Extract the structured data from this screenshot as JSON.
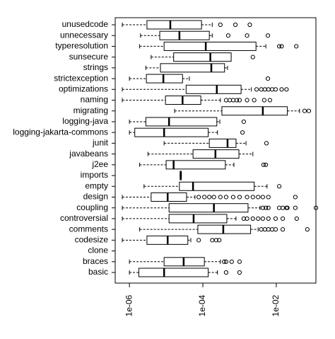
{
  "chart_data": {
    "type": "boxplot",
    "orientation": "horizontal",
    "log_x": true,
    "categories": [
      "unusedcode",
      "unnecessary",
      "typeresolution",
      "sunsecure",
      "strings",
      "strictexception",
      "optimizations",
      "naming",
      "migrating",
      "logging-java",
      "logging-jakarta-commons",
      "junit",
      "javabeans",
      "j2ee",
      "imports",
      "empty",
      "design",
      "coupling",
      "controversial",
      "comments",
      "codesize",
      "clone",
      "braces",
      "basic"
    ],
    "boxes": [
      {
        "whislo": 6.4e-07,
        "q1": 3e-06,
        "med": 1.3e-05,
        "q3": 9.2e-05,
        "whishi": 0.00018,
        "fliers": [
          0.0003,
          0.00077,
          0.0019
        ]
      },
      {
        "whislo": 2e-06,
        "q1": 6.7e-06,
        "med": 2.3e-05,
        "q3": 0.00015,
        "whishi": 0.00018,
        "fliers": [
          0.00049,
          0.0016,
          0.0059
        ]
      },
      {
        "whislo": 1.9e-06,
        "q1": 8.8e-06,
        "med": 0.00012,
        "q3": 0.0028,
        "whishi": 0.0052,
        "fliers": [
          0.012,
          0.014,
          0.035
        ]
      },
      {
        "whislo": 3.9e-06,
        "q1": 1.6e-05,
        "med": 0.00016,
        "q3": 0.00059,
        "whishi": 0.00059,
        "fliers": [
          0.0023
        ]
      },
      {
        "whislo": 2.8e-06,
        "q1": 7e-06,
        "med": 0.00017,
        "q3": 0.00039,
        "whishi": 0.00047,
        "fliers": []
      },
      {
        "whislo": 1e-06,
        "q1": 2.9e-06,
        "med": 8.4e-06,
        "q3": 2.8e-05,
        "whishi": 4.3e-05,
        "fliers": [
          0.0059
        ]
      },
      {
        "whislo": 6.4e-07,
        "q1": 3.5e-05,
        "med": 0.00024,
        "q3": 0.0011,
        "whishi": 0.0021,
        "fliers": [
          0.0029,
          0.0039,
          0.0049,
          0.0061,
          0.0077,
          0.0096,
          0.014,
          0.019
        ]
      },
      {
        "whislo": 6.4e-07,
        "q1": 9.6e-06,
        "med": 2.8e-05,
        "q3": 8.8e-05,
        "whishi": 0.0003,
        "fliers": [
          0.00043,
          0.00054,
          0.00067,
          0.00084,
          0.001,
          0.0016,
          0.0025,
          0.0047,
          0.0067
        ]
      },
      {
        "whislo": 1.7e-05,
        "q1": 0.00033,
        "med": 0.0043,
        "q3": 0.02,
        "whishi": 0.043,
        "fliers": [
          0.059,
          0.077
        ]
      },
      {
        "whislo": 1e-06,
        "q1": 2.8e-06,
        "med": 1.2e-05,
        "q3": 0.00024,
        "whishi": 0.00029,
        "fliers": [
          0.0013
        ]
      },
      {
        "whislo": 1e-06,
        "q1": 1.4e-06,
        "med": 8.8e-06,
        "q3": 0.00014,
        "whishi": 0.00025,
        "fliers": [
          0.0012
        ]
      },
      {
        "whislo": 8.8e-06,
        "q1": 0.00015,
        "med": 0.00047,
        "q3": 0.0008,
        "whishi": 0.0015,
        "fliers": [
          0.0054
        ]
      },
      {
        "whislo": 3.2e-06,
        "q1": 5.4e-05,
        "med": 0.00022,
        "q3": 0.00096,
        "whishi": 0.0023,
        "fliers": []
      },
      {
        "whislo": 1.9e-06,
        "q1": 1e-05,
        "med": 1.6e-05,
        "q3": 0.00041,
        "whishi": 0.0007,
        "fliers": [
          0.0045,
          0.0052
        ]
      },
      {
        "whislo": 2.4e-05,
        "q1": 2.4e-05,
        "med": 2.5e-05,
        "q3": 2.6e-05,
        "whishi": 2.6e-05,
        "fliers": []
      },
      {
        "whislo": 2.5e-06,
        "q1": 2.3e-05,
        "med": 5.4e-05,
        "q3": 0.0025,
        "whishi": 0.0056,
        "fliers": [
          0.012
        ]
      },
      {
        "whislo": 6.4e-07,
        "q1": 3.9e-06,
        "med": 1.1e-05,
        "q3": 3.6e-05,
        "whishi": 6.1e-05,
        "fliers": [
          7.7e-05,
          0.00011,
          0.00015,
          0.0002,
          0.0003,
          0.00043,
          0.00067,
          0.001,
          0.0016,
          0.0023,
          0.0032,
          0.0043,
          0.0061,
          0.033
        ]
      },
      {
        "whislo": 6.4e-07,
        "q1": 1.2e-05,
        "med": 0.0002,
        "q3": 0.0017,
        "whishi": 0.0036,
        "fliers": [
          0.0043,
          0.0052,
          0.0061,
          0.012,
          0.015,
          0.019,
          0.02,
          0.033,
          0.12
        ]
      },
      {
        "whislo": 6.4e-07,
        "q1": 1.2e-05,
        "med": 5.6e-05,
        "q3": 0.00045,
        "whishi": 0.0008,
        "fliers": [
          0.0013,
          0.0016,
          0.0023,
          0.0032,
          0.0043,
          0.0061,
          0.0096,
          0.015,
          0.036
        ]
      },
      {
        "whislo": 1.9e-06,
        "q1": 7.3e-05,
        "med": 0.00036,
        "q3": 0.002,
        "whishi": 0.0032,
        "fliers": [
          0.0039,
          0.0049,
          0.0061,
          0.0077,
          0.0096,
          0.015,
          0.07
        ]
      },
      {
        "whislo": 6.4e-07,
        "q1": 3e-06,
        "med": 1.1e-05,
        "q3": 3.9e-05,
        "whishi": 4.7e-05,
        "fliers": [
          7.7e-05,
          0.00018,
          0.00023,
          0.00028
        ]
      },
      null,
      {
        "whislo": 1e-06,
        "q1": 8.8e-06,
        "med": 3e-05,
        "q3": 0.00011,
        "whishi": 0.0003,
        "fliers": [
          0.00038,
          0.00043,
          0.00061,
          0.001
        ]
      },
      {
        "whislo": 1e-06,
        "q1": 1.8e-06,
        "med": 8.8e-06,
        "q3": 0.00014,
        "whishi": 0.00025,
        "fliers": [
          0.00043,
          0.001
        ]
      }
    ],
    "xlim": [
      4.1e-07,
      0.12
    ],
    "xticks": [
      {
        "value": 1e-06,
        "label": "1e-06"
      },
      {
        "value": 0.0001,
        "label": "1e-04"
      },
      {
        "value": 0.01,
        "label": "1e-02"
      }
    ],
    "color": "#000000"
  }
}
